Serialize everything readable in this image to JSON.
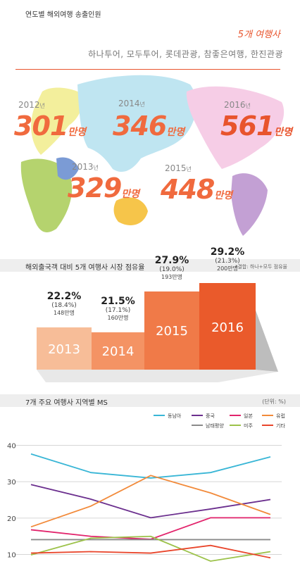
{
  "colors": {
    "accent": "#e8542d",
    "gray_header": "#eeeeee"
  },
  "section1": {
    "title": "연도별 해외여행 송출인원",
    "agency_count": "5개 여행사",
    "agencies": "하나투어, 모두투어, 롯데관광, 참좋은여행, 한진관광",
    "years": [
      {
        "year": "2012",
        "suffix": "년",
        "value": "301",
        "unit": "만명"
      },
      {
        "year": "2014",
        "suffix": "년",
        "value": "346",
        "unit": "만명"
      },
      {
        "year": "2016",
        "suffix": "년",
        "value": "561",
        "unit": "만명"
      },
      {
        "year": "2013",
        "suffix": "년",
        "value": "329",
        "unit": "만명"
      },
      {
        "year": "2015",
        "suffix": "년",
        "value": "448",
        "unit": "만명"
      }
    ]
  },
  "section2": {
    "title": "해외출국객 대비 5개 여행사 시장 점유율",
    "note": "*결합: 하나+모두 점유율"
  },
  "section3": {
    "title": "7개 주요 여행사 지역별 MS",
    "unit_note": "(단위: %)"
  },
  "chart_data": [
    {
      "type": "bar",
      "categories": [
        "2013",
        "2014",
        "2015",
        "2016"
      ],
      "series": [
        {
          "name": "share",
          "values": [
            22.2,
            21.5,
            27.9,
            29.2
          ]
        },
        {
          "name": "combined_share",
          "values": [
            18.4,
            17.1,
            19.0,
            21.3
          ]
        },
        {
          "name": "count",
          "values": [
            148,
            160,
            193,
            200
          ]
        }
      ],
      "labels": {
        "share": [
          "22.2%",
          "21.5%",
          "27.9%",
          "29.2%"
        ],
        "combined": [
          "(18.4%)",
          "(17.1%)",
          "(19.0%)",
          "(21.3%)"
        ],
        "count": [
          "148만명",
          "160만명",
          "193만명",
          "200만명"
        ]
      },
      "colors": [
        "#f7bd98",
        "#f49364",
        "#f07a48",
        "#ea5a2b"
      ]
    },
    {
      "type": "line",
      "title": "7개 주요 여행사 지역별 MS",
      "x": [
        0,
        1,
        2,
        3,
        4
      ],
      "ylim": [
        8,
        42
      ],
      "yticks": [
        10,
        20,
        30,
        40
      ],
      "grid": true,
      "legend_position": "top-right",
      "series": [
        {
          "name": "동남아",
          "color": "#39b6d6",
          "values": [
            37.6,
            32.5,
            31.0,
            32.5,
            36.8
          ]
        },
        {
          "name": "중국",
          "color": "#6b2f8e",
          "values": [
            29.2,
            25.2,
            20.1,
            22.5,
            25.1
          ]
        },
        {
          "name": "일본",
          "color": "#e2246c",
          "values": [
            16.8,
            15.0,
            14.2,
            20.1,
            20.1
          ]
        },
        {
          "name": "유럽",
          "color": "#f28a3a",
          "values": [
            17.6,
            23.3,
            31.7,
            26.9,
            21.0
          ]
        },
        {
          "name": "남태평양",
          "color": "#8a8a8a",
          "values": [
            14.1,
            14.1,
            14.1,
            14.1,
            14.1
          ]
        },
        {
          "name": "미주",
          "color": "#9cc24a",
          "values": [
            9.9,
            14.5,
            15.0,
            8.2,
            10.8
          ]
        },
        {
          "name": "기타",
          "color": "#e9452b",
          "values": [
            10.4,
            10.8,
            10.4,
            12.5,
            9.1
          ]
        }
      ]
    }
  ]
}
